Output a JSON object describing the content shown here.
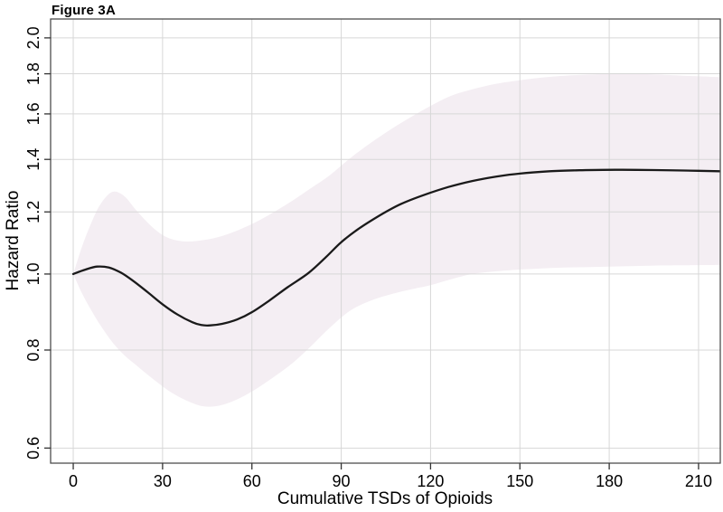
{
  "figure": {
    "title": "Figure 3A"
  },
  "chart_data": {
    "type": "line",
    "title": "Figure 3A",
    "xlabel": "Cumulative TSDs of Opioids",
    "ylabel": "Hazard Ratio",
    "y_scale": "log",
    "grid": true,
    "legend": "none",
    "xlim": [
      -7.6,
      217.3
    ],
    "ylim": [
      0.574,
      2.114
    ],
    "x_ticks": [
      0,
      30,
      60,
      90,
      120,
      150,
      180,
      210
    ],
    "y_ticks": [
      0.6,
      0.8,
      1.0,
      1.2,
      1.4,
      1.6,
      1.8,
      2.0
    ],
    "series": [
      {
        "name": "hazard-ratio-curve",
        "color": "#1a1a1a",
        "x": [
          0,
          4,
          8,
          12,
          16,
          20,
          25,
          30,
          35,
          40,
          43,
          46,
          50,
          55,
          60,
          66,
          72,
          79,
          85,
          90,
          96,
          103,
          110,
          118,
          126,
          134,
          142,
          150,
          160,
          170,
          182,
          195,
          205,
          217
        ],
        "y": [
          1.0,
          1.013,
          1.022,
          1.019,
          1.004,
          0.981,
          0.948,
          0.915,
          0.888,
          0.868,
          0.861,
          0.86,
          0.864,
          0.875,
          0.894,
          0.926,
          0.962,
          1.003,
          1.052,
          1.098,
          1.143,
          1.188,
          1.228,
          1.262,
          1.291,
          1.314,
          1.331,
          1.343,
          1.352,
          1.356,
          1.358,
          1.357,
          1.355,
          1.352
        ]
      }
    ],
    "band": {
      "name": "confidence-band",
      "color": "#f4eef3",
      "x": [
        0,
        3,
        6,
        9,
        13,
        17,
        21,
        25,
        29,
        33,
        38,
        44,
        50,
        56,
        62,
        68,
        74,
        80,
        86,
        93,
        100,
        107,
        114,
        120,
        127,
        134,
        141,
        148,
        156,
        165,
        175,
        185,
        195,
        205,
        217
      ],
      "upper": [
        1.0,
        1.085,
        1.16,
        1.225,
        1.272,
        1.258,
        1.208,
        1.163,
        1.128,
        1.108,
        1.1,
        1.105,
        1.118,
        1.14,
        1.168,
        1.203,
        1.243,
        1.288,
        1.335,
        1.405,
        1.47,
        1.532,
        1.59,
        1.638,
        1.688,
        1.72,
        1.745,
        1.762,
        1.778,
        1.79,
        1.797,
        1.8,
        1.797,
        1.79,
        1.782
      ],
      "lower": [
        1.0,
        0.944,
        0.9,
        0.862,
        0.82,
        0.789,
        0.766,
        0.744,
        0.724,
        0.706,
        0.69,
        0.678,
        0.681,
        0.695,
        0.716,
        0.742,
        0.772,
        0.81,
        0.853,
        0.898,
        0.925,
        0.943,
        0.957,
        0.968,
        0.985,
        1.0,
        1.007,
        1.012,
        1.016,
        1.019,
        1.021,
        1.023,
        1.025,
        1.026,
        1.027
      ]
    },
    "colors": {
      "gridline": "#d7d7d7",
      "box": "#4d4d4d",
      "tick": "#333333",
      "text": "#000000",
      "background": "#ffffff"
    }
  }
}
